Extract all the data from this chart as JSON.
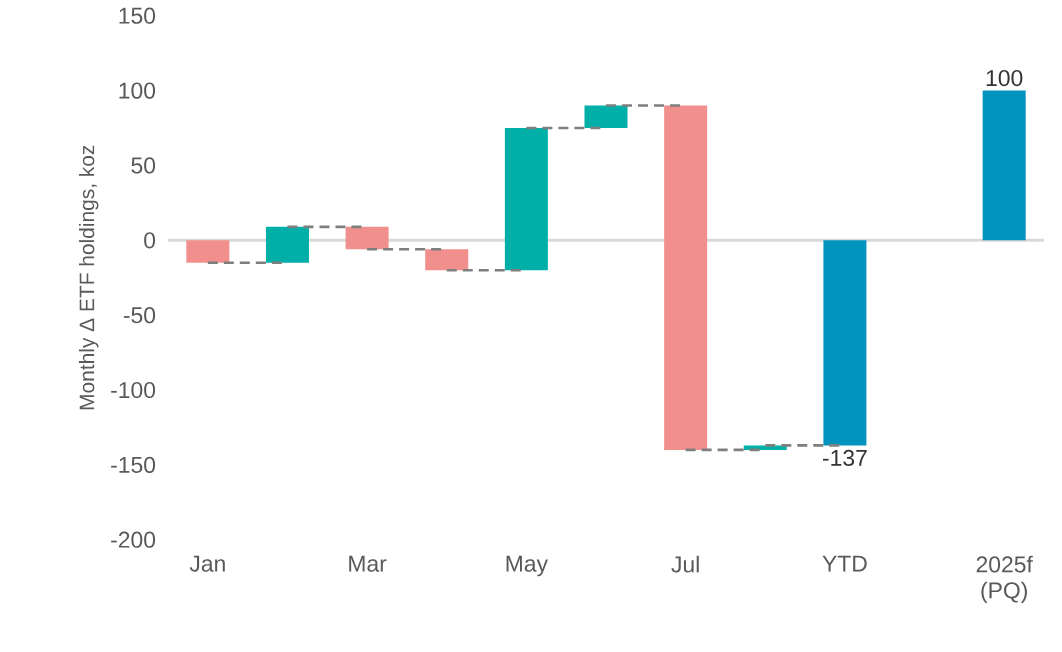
{
  "chart_data": {
    "type": "bar",
    "ylabel": "Monthly Δ ETF holdings, koz",
    "categories": [
      "Jan",
      null,
      "Mar",
      null,
      "May",
      null,
      "Jul",
      null,
      "YTD",
      null,
      "2025f (PQ)"
    ],
    "series": [
      {
        "base": [
          0,
          -15,
          9,
          -6,
          -20,
          75,
          90,
          -140,
          0,
          null,
          0
        ],
        "values": [
          -15,
          24,
          -15,
          -14,
          95,
          15,
          -230,
          3,
          -137,
          null,
          100
        ],
        "colors": [
          "#f08f8c",
          "#00b0a8",
          "#f08f8c",
          "#f08f8c",
          "#00b0a8",
          "#00b0a8",
          "#f08f8c",
          "#00b0a8",
          "#0093bd",
          null,
          "#0093bd"
        ],
        "value_labels": [
          null,
          null,
          null,
          null,
          null,
          null,
          null,
          null,
          "-137",
          null,
          "100"
        ]
      },
      {
        "type": "line",
        "color": "#7f7f7f",
        "line_style": "dashed",
        "values": [
          -15,
          -15,
          null,
          null,
          null,
          null,
          null,
          null,
          null,
          null,
          null
        ]
      },
      {
        "type": "line",
        "color": "#7f7f7f",
        "line_style": "dashed",
        "values": [
          null,
          9,
          9,
          null,
          null,
          null,
          null,
          null,
          null,
          null,
          null
        ]
      },
      {
        "type": "line",
        "color": "#7f7f7f",
        "line_style": "dashed",
        "values": [
          null,
          null,
          -6,
          -6,
          null,
          null,
          null,
          null,
          null,
          null,
          null
        ]
      },
      {
        "type": "line",
        "color": "#7f7f7f",
        "line_style": "dashed",
        "values": [
          null,
          null,
          null,
          -20,
          -20,
          null,
          null,
          null,
          null,
          null,
          null
        ]
      },
      {
        "type": "line",
        "color": "#7f7f7f",
        "line_style": "dashed",
        "values": [
          null,
          null,
          null,
          null,
          75,
          75,
          null,
          null,
          null,
          null,
          null
        ]
      },
      {
        "type": "line",
        "color": "#7f7f7f",
        "line_style": "dashed",
        "values": [
          null,
          null,
          null,
          null,
          null,
          90,
          90,
          null,
          null,
          null,
          null
        ]
      },
      {
        "type": "line",
        "color": "#7f7f7f",
        "line_style": "dashed",
        "values": [
          null,
          null,
          null,
          null,
          null,
          null,
          -140,
          -140,
          null,
          null,
          null
        ]
      },
      {
        "type": "line",
        "color": "#7f7f7f",
        "line_style": "dashed",
        "values": [
          null,
          null,
          null,
          null,
          null,
          null,
          null,
          -137,
          -137,
          null,
          null
        ]
      }
    ],
    "ref_lines": [
      {
        "axis": "y",
        "value": 0,
        "color": "#d9d9d9"
      }
    ],
    "ylim": [
      -200,
      150
    ],
    "yticks": [
      -200,
      -150,
      -100,
      -50,
      0,
      50,
      100,
      150
    ]
  }
}
